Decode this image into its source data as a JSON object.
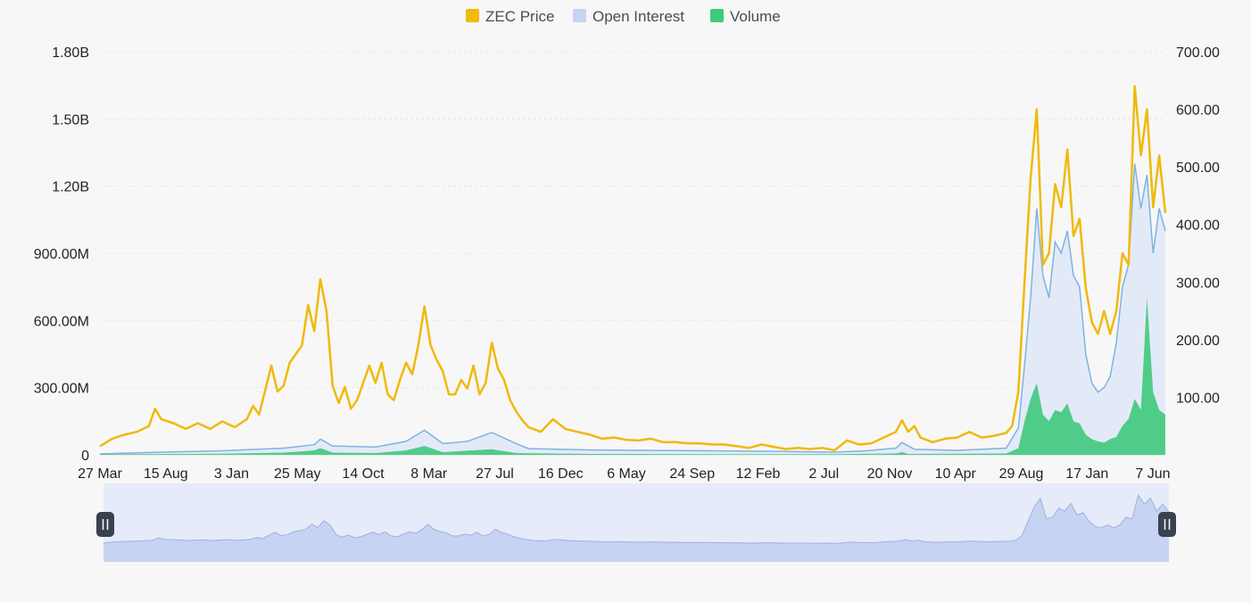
{
  "chart_data": {
    "type": "line",
    "title": "",
    "xlabel": "",
    "ylabel": "",
    "legend": {
      "placement": "top-center",
      "items": [
        {
          "key": "price",
          "label": "ZEC Price",
          "color": "#f0b90b"
        },
        {
          "key": "oi",
          "label": "Open Interest",
          "color": "#c5d4f5"
        },
        {
          "key": "volume",
          "label": "Volume",
          "color": "#3fc97c"
        }
      ]
    },
    "x_tick_labels": [
      "27 Mar",
      "15 Aug",
      "3 Jan",
      "25 May",
      "14 Oct",
      "8 Mar",
      "27 Jul",
      "16 Dec",
      "6 May",
      "24 Sep",
      "12 Feb",
      "2 Jul",
      "20 Nov",
      "10 Apr",
      "29 Aug",
      "17 Jan",
      "7 Jun"
    ],
    "y_left": {
      "range": [
        0,
        1800000000
      ],
      "ticks": [
        0,
        300000000,
        600000000,
        900000000,
        1200000000,
        1500000000,
        1800000000
      ],
      "tick_labels": [
        "0",
        "300.00M",
        "600.00M",
        "900.00M",
        "1.20B",
        "1.50B",
        "1.80B"
      ]
    },
    "y_right": {
      "range": [
        0,
        700
      ],
      "ticks": [
        100,
        200,
        300,
        400,
        500,
        600,
        700
      ],
      "tick_labels": [
        "100.00",
        "200.00",
        "300.00",
        "400.00",
        "500.00",
        "600.00",
        "700.00"
      ]
    },
    "grid": true,
    "x_index_range": [
      0,
      160
    ],
    "series": [
      {
        "name": "ZEC Price",
        "axis": "right",
        "color": "#f0b90b",
        "points": [
          [
            0,
            15
          ],
          [
            2,
            28
          ],
          [
            4,
            35
          ],
          [
            6,
            40
          ],
          [
            8,
            50
          ],
          [
            9,
            80
          ],
          [
            10,
            62
          ],
          [
            12,
            55
          ],
          [
            14,
            45
          ],
          [
            16,
            55
          ],
          [
            18,
            45
          ],
          [
            20,
            58
          ],
          [
            22,
            48
          ],
          [
            24,
            62
          ],
          [
            25,
            85
          ],
          [
            26,
            70
          ],
          [
            28,
            155
          ],
          [
            29,
            110
          ],
          [
            30,
            120
          ],
          [
            31,
            160
          ],
          [
            33,
            190
          ],
          [
            34,
            260
          ],
          [
            35,
            215
          ],
          [
            36,
            305
          ],
          [
            37,
            250
          ],
          [
            38,
            120
          ],
          [
            39,
            90
          ],
          [
            40,
            118
          ],
          [
            41,
            80
          ],
          [
            42,
            95
          ],
          [
            44,
            155
          ],
          [
            45,
            125
          ],
          [
            46,
            160
          ],
          [
            47,
            105
          ],
          [
            48,
            95
          ],
          [
            49,
            130
          ],
          [
            50,
            160
          ],
          [
            51,
            140
          ],
          [
            52,
            190
          ],
          [
            53,
            258
          ],
          [
            54,
            190
          ],
          [
            55,
            165
          ],
          [
            56,
            145
          ],
          [
            57,
            105
          ],
          [
            58,
            105
          ],
          [
            59,
            130
          ],
          [
            60,
            115
          ],
          [
            61,
            155
          ],
          [
            62,
            105
          ],
          [
            63,
            125
          ],
          [
            64,
            195
          ],
          [
            65,
            150
          ],
          [
            66,
            130
          ],
          [
            67,
            95
          ],
          [
            68,
            75
          ],
          [
            69,
            60
          ],
          [
            70,
            48
          ],
          [
            72,
            40
          ],
          [
            74,
            62
          ],
          [
            76,
            45
          ],
          [
            78,
            40
          ],
          [
            80,
            35
          ],
          [
            82,
            28
          ],
          [
            84,
            30
          ],
          [
            86,
            26
          ],
          [
            88,
            25
          ],
          [
            90,
            28
          ],
          [
            92,
            22
          ],
          [
            94,
            22
          ],
          [
            96,
            20
          ],
          [
            98,
            20
          ],
          [
            100,
            18
          ],
          [
            102,
            18
          ],
          [
            104,
            15
          ],
          [
            106,
            12
          ],
          [
            108,
            18
          ],
          [
            110,
            14
          ],
          [
            112,
            10
          ],
          [
            114,
            12
          ],
          [
            116,
            10
          ],
          [
            118,
            12
          ],
          [
            120,
            8
          ],
          [
            122,
            25
          ],
          [
            124,
            18
          ],
          [
            126,
            20
          ],
          [
            128,
            30
          ],
          [
            130,
            40
          ],
          [
            131,
            60
          ],
          [
            132,
            40
          ],
          [
            133,
            50
          ],
          [
            134,
            30
          ],
          [
            136,
            22
          ],
          [
            138,
            28
          ],
          [
            140,
            30
          ],
          [
            142,
            40
          ],
          [
            144,
            30
          ],
          [
            146,
            33
          ],
          [
            148,
            38
          ],
          [
            149,
            50
          ],
          [
            150,
            110
          ],
          [
            151,
            300
          ],
          [
            152,
            480
          ],
          [
            153,
            600
          ],
          [
            154,
            330
          ],
          [
            155,
            350
          ],
          [
            156,
            470
          ],
          [
            157,
            430
          ],
          [
            158,
            530
          ],
          [
            159,
            380
          ],
          [
            160,
            410
          ],
          [
            161,
            290
          ],
          [
            162,
            230
          ],
          [
            163,
            210
          ],
          [
            164,
            250
          ],
          [
            165,
            210
          ],
          [
            166,
            250
          ],
          [
            167,
            350
          ],
          [
            168,
            330
          ],
          [
            169,
            640
          ],
          [
            170,
            520
          ],
          [
            171,
            600
          ],
          [
            172,
            430
          ],
          [
            173,
            520
          ],
          [
            174,
            420
          ]
        ]
      },
      {
        "name": "Open Interest",
        "axis": "left",
        "color": "#7eb3e0",
        "fill": "#dfe8f7",
        "points": [
          [
            0,
            4000000
          ],
          [
            10,
            12000000
          ],
          [
            20,
            18000000
          ],
          [
            30,
            30000000
          ],
          [
            35,
            45000000
          ],
          [
            36,
            70000000
          ],
          [
            38,
            40000000
          ],
          [
            45,
            35000000
          ],
          [
            50,
            60000000
          ],
          [
            53,
            110000000
          ],
          [
            56,
            50000000
          ],
          [
            60,
            60000000
          ],
          [
            64,
            100000000
          ],
          [
            68,
            50000000
          ],
          [
            70,
            28000000
          ],
          [
            80,
            22000000
          ],
          [
            90,
            20000000
          ],
          [
            100,
            18000000
          ],
          [
            110,
            16000000
          ],
          [
            120,
            12000000
          ],
          [
            125,
            18000000
          ],
          [
            130,
            30000000
          ],
          [
            131,
            55000000
          ],
          [
            133,
            25000000
          ],
          [
            140,
            20000000
          ],
          [
            148,
            30000000
          ],
          [
            150,
            120000000
          ],
          [
            151,
            400000000
          ],
          [
            152,
            700000000
          ],
          [
            153,
            1100000000
          ],
          [
            154,
            800000000
          ],
          [
            155,
            700000000
          ],
          [
            156,
            950000000
          ],
          [
            157,
            900000000
          ],
          [
            158,
            1000000000
          ],
          [
            159,
            800000000
          ],
          [
            160,
            750000000
          ],
          [
            161,
            450000000
          ],
          [
            162,
            320000000
          ],
          [
            163,
            280000000
          ],
          [
            164,
            300000000
          ],
          [
            165,
            350000000
          ],
          [
            166,
            500000000
          ],
          [
            167,
            750000000
          ],
          [
            168,
            850000000
          ],
          [
            169,
            1300000000
          ],
          [
            170,
            1100000000
          ],
          [
            171,
            1250000000
          ],
          [
            172,
            900000000
          ],
          [
            173,
            1100000000
          ],
          [
            174,
            1000000000
          ]
        ]
      },
      {
        "name": "Volume",
        "axis": "left",
        "color": "#3fc97c",
        "points": [
          [
            0,
            2000000
          ],
          [
            20,
            5000000
          ],
          [
            30,
            10000000
          ],
          [
            35,
            20000000
          ],
          [
            36,
            30000000
          ],
          [
            38,
            10000000
          ],
          [
            45,
            8000000
          ],
          [
            50,
            20000000
          ],
          [
            53,
            40000000
          ],
          [
            56,
            12000000
          ],
          [
            64,
            25000000
          ],
          [
            68,
            8000000
          ],
          [
            80,
            4000000
          ],
          [
            100,
            3000000
          ],
          [
            120,
            3000000
          ],
          [
            130,
            6000000
          ],
          [
            131,
            12000000
          ],
          [
            132,
            4000000
          ],
          [
            148,
            6000000
          ],
          [
            150,
            30000000
          ],
          [
            151,
            150000000
          ],
          [
            152,
            250000000
          ],
          [
            153,
            320000000
          ],
          [
            154,
            180000000
          ],
          [
            155,
            150000000
          ],
          [
            156,
            200000000
          ],
          [
            157,
            190000000
          ],
          [
            158,
            230000000
          ],
          [
            159,
            150000000
          ],
          [
            160,
            140000000
          ],
          [
            161,
            90000000
          ],
          [
            162,
            70000000
          ],
          [
            163,
            60000000
          ],
          [
            164,
            55000000
          ],
          [
            165,
            70000000
          ],
          [
            166,
            80000000
          ],
          [
            167,
            130000000
          ],
          [
            168,
            160000000
          ],
          [
            169,
            250000000
          ],
          [
            170,
            200000000
          ],
          [
            171,
            700000000
          ],
          [
            172,
            280000000
          ],
          [
            173,
            200000000
          ],
          [
            174,
            180000000
          ]
        ]
      }
    ],
    "navigator": {
      "series_ref": "ZEC Price",
      "selected_range": [
        0,
        174
      ]
    }
  }
}
